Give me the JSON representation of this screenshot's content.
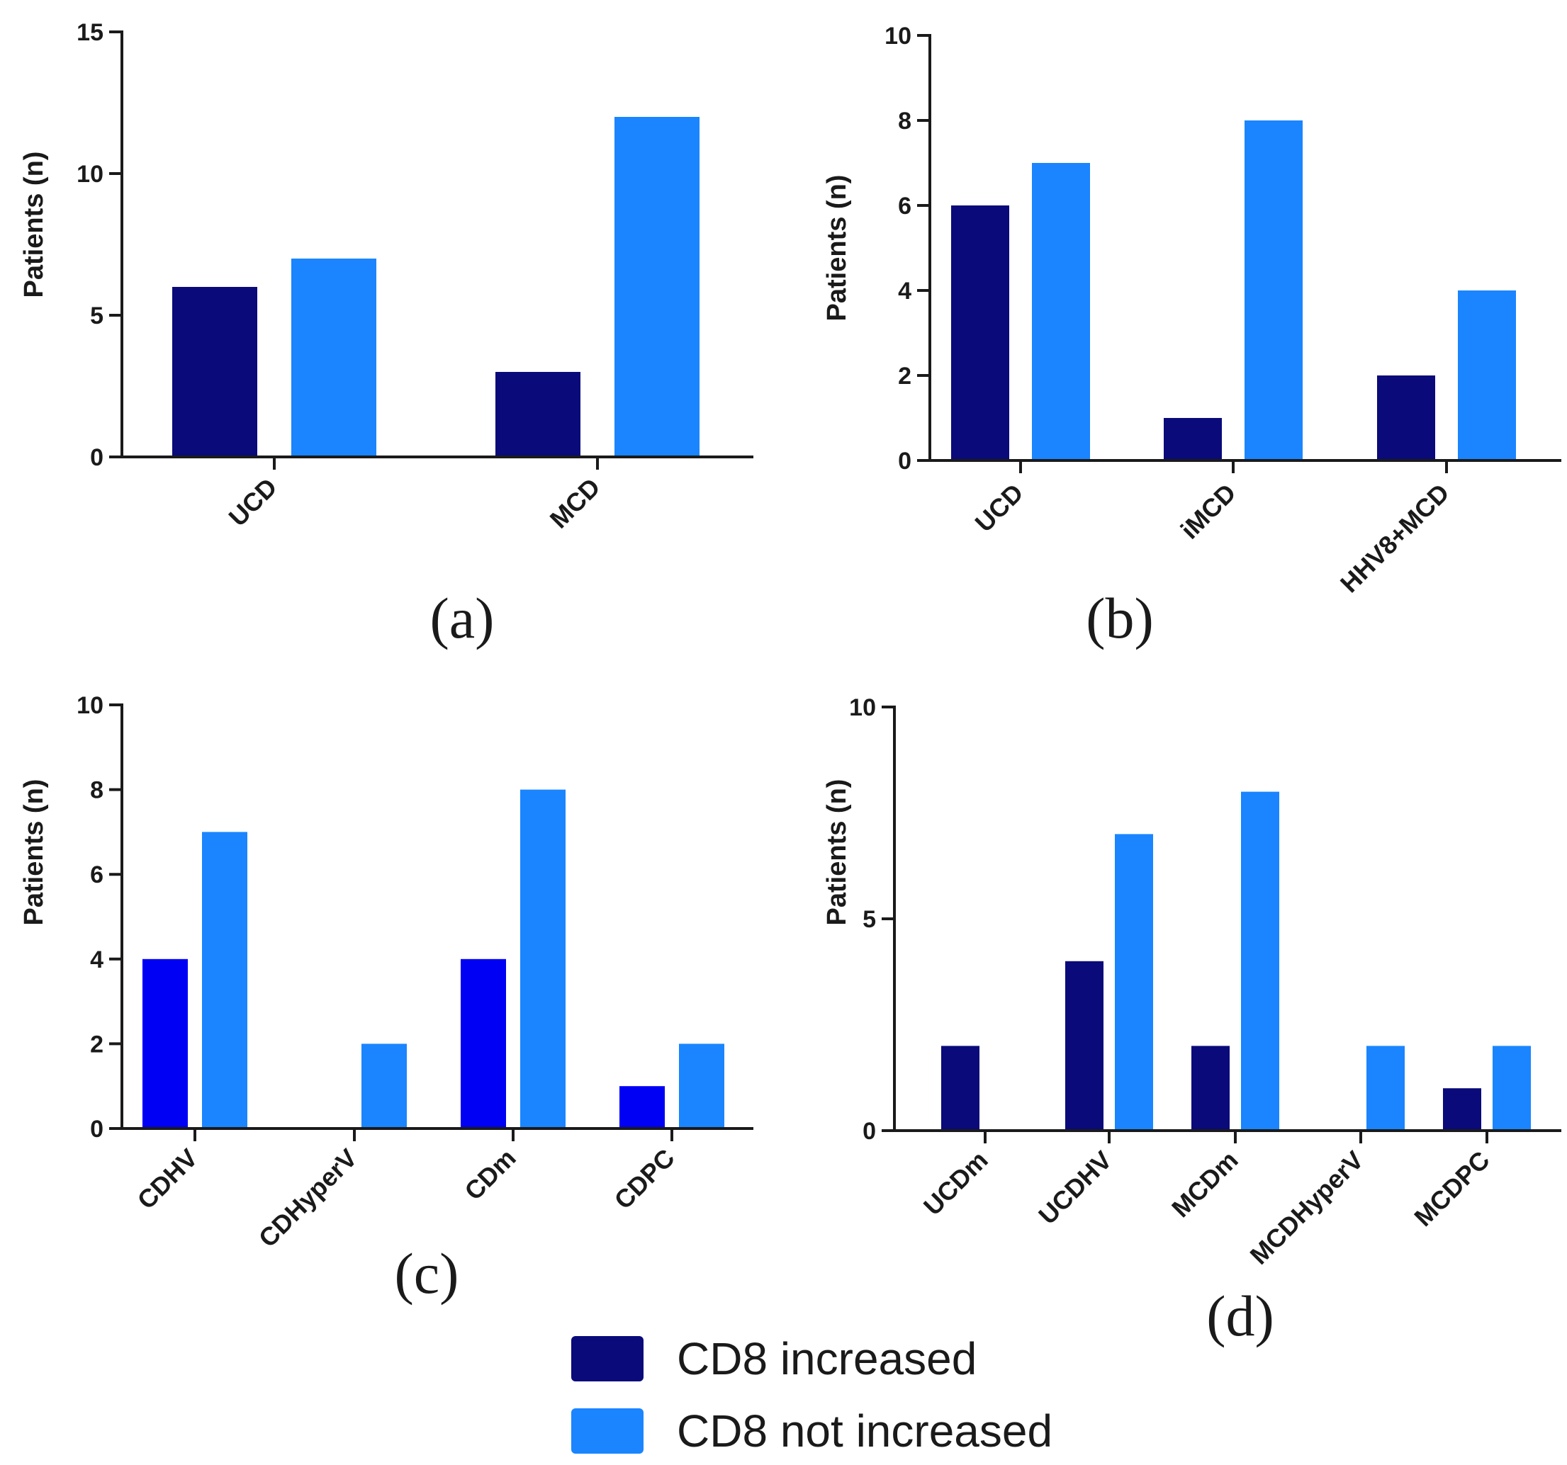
{
  "colors": {
    "cd8_increased": "#0a0a7a",
    "cd8_increased_c": "#0000f5",
    "cd8_not_increased": "#1a85ff",
    "axis": "#1a1a1a"
  },
  "legend": {
    "items": [
      {
        "label": "CD8 increased",
        "color_key": "cd8_increased"
      },
      {
        "label": "CD8 not increased",
        "color_key": "cd8_not_increased"
      }
    ]
  },
  "chart_data": [
    {
      "type": "bar",
      "panel_label": "(a)",
      "ylabel": "Patients (n)",
      "ylim": [
        0,
        15
      ],
      "yticks": [
        0,
        5,
        10,
        15
      ],
      "categories": [
        "UCD",
        "MCD"
      ],
      "series": [
        {
          "name": "CD8 increased",
          "color_key": "cd8_increased",
          "values": [
            6,
            3
          ]
        },
        {
          "name": "CD8 not increased",
          "color_key": "cd8_not_increased",
          "values": [
            7,
            12
          ]
        }
      ]
    },
    {
      "type": "bar",
      "panel_label": "(b)",
      "ylabel": "Patients (n)",
      "ylim": [
        0,
        10
      ],
      "yticks": [
        0,
        2,
        4,
        6,
        8,
        10
      ],
      "categories": [
        "UCD",
        "iMCD",
        "HHV8+MCD"
      ],
      "series": [
        {
          "name": "CD8 increased",
          "color_key": "cd8_increased",
          "values": [
            6,
            1,
            2
          ]
        },
        {
          "name": "CD8 not increased",
          "color_key": "cd8_not_increased",
          "values": [
            7,
            8,
            4
          ]
        }
      ]
    },
    {
      "type": "bar",
      "panel_label": "(c)",
      "ylabel": "Patients (n)",
      "ylim": [
        0,
        10
      ],
      "yticks": [
        0,
        2,
        4,
        6,
        8,
        10
      ],
      "categories": [
        "CDHV",
        "CDHyperV",
        "CDm",
        "CDPC"
      ],
      "series": [
        {
          "name": "CD8 increased",
          "color_key": "cd8_increased_c",
          "values": [
            4,
            0,
            4,
            1
          ]
        },
        {
          "name": "CD8 not increased",
          "color_key": "cd8_not_increased",
          "values": [
            7,
            2,
            8,
            2
          ]
        }
      ]
    },
    {
      "type": "bar",
      "panel_label": "(d)",
      "ylabel": "Patients (n)",
      "ylim": [
        0,
        10
      ],
      "yticks": [
        0,
        5,
        10
      ],
      "categories": [
        "UCDm",
        "UCDHV",
        "MCDm",
        "MCDHyperV",
        "MCDPC"
      ],
      "series": [
        {
          "name": "CD8 increased",
          "color_key": "cd8_increased",
          "values": [
            2,
            4,
            2,
            0,
            1
          ]
        },
        {
          "name": "CD8 not increased",
          "color_key": "cd8_not_increased",
          "values": [
            0,
            7,
            8,
            2,
            2
          ]
        }
      ]
    }
  ]
}
